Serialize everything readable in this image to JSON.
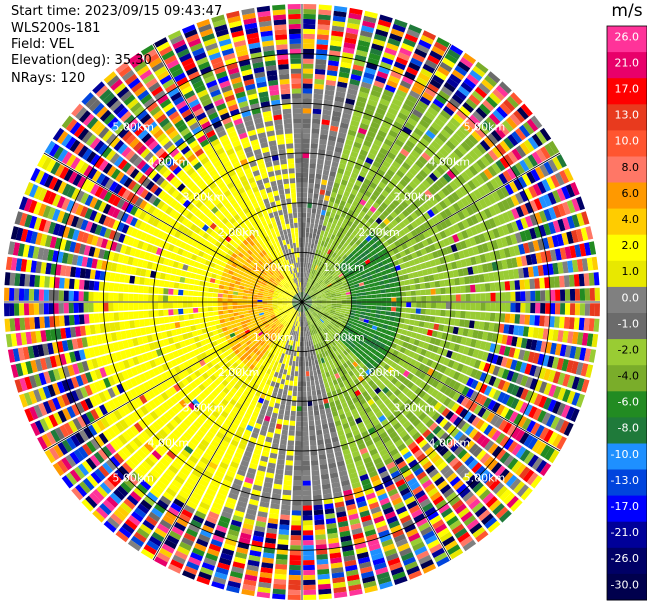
{
  "header": {
    "start_time": "Start time: 2023/09/15 09:43:47",
    "instrument": "WLS200s-181",
    "field": "Field: VEL",
    "elevation": "Elevation(deg): 35.30",
    "nrays": "NRays: 120"
  },
  "chart_data": {
    "type": "heatmap",
    "subtype": "polar-ppi",
    "unit": "m/s",
    "n_rays": 120,
    "max_range_km": 6.0,
    "range_rings_km": [
      1,
      2,
      3,
      4,
      5
    ],
    "ring_labels": [
      "1.00km",
      "2.00km",
      "3.00km",
      "4.00km",
      "5.00km"
    ],
    "colorbar": {
      "ticks": [
        "26.0",
        "21.0",
        "17.0",
        "13.0",
        "10.0",
        "8.0",
        "6.0",
        "4.0",
        "2.0",
        "1.0",
        "0.0",
        "-1.0",
        "-2.0",
        "-4.0",
        "-6.0",
        "-8.0",
        "-10.0",
        "-13.0",
        "-17.0",
        "-21.0",
        "-26.0",
        "-30.0"
      ],
      "colors": [
        "#ff3399",
        "#e8006a",
        "#ff0000",
        "#e83a1e",
        "#ff5530",
        "#ff7766",
        "#ff9900",
        "#ffcc00",
        "#ffff00",
        "#e8e800",
        "#808080",
        "#6b6b6b",
        "#99cc33",
        "#7aad2a",
        "#228b22",
        "#1f7a3a",
        "#1e90ff",
        "#0044dd",
        "#0000ff",
        "#000099",
        "#000066",
        "#00004d"
      ]
    },
    "pattern": {
      "inner_positive_sector": "west, approx +2 to +6 m/s",
      "inner_negative_sector": "east, approx -1 to -6 m/s",
      "noise_beyond_km": 4.2
    }
  }
}
